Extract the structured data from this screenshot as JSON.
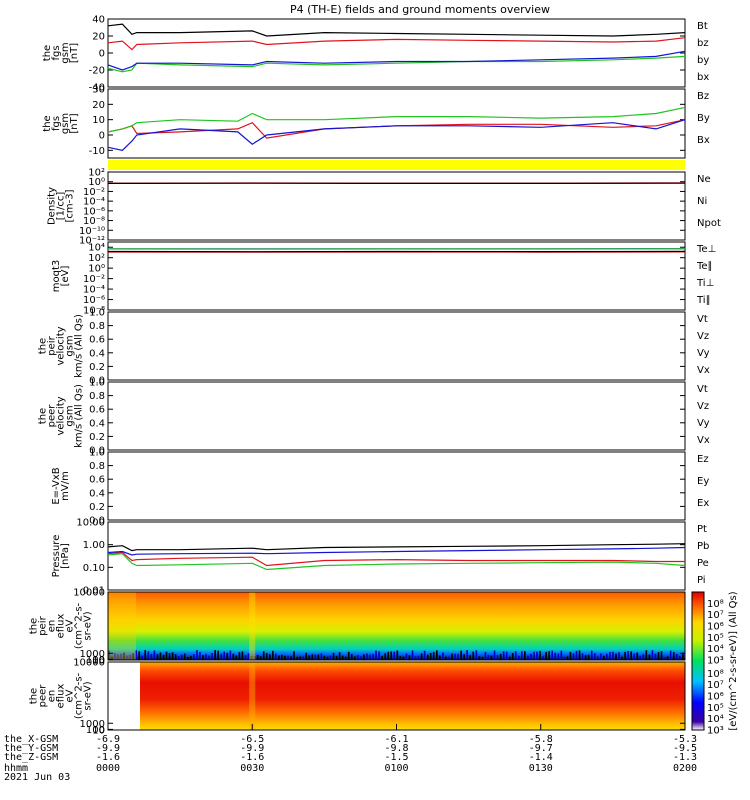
{
  "title": "P4 (TH-E) fields and ground moments overview",
  "colors": {
    "black": "#000000",
    "red": "#e0141e",
    "green": "#21c421",
    "blue": "#1414d2",
    "yellow": "#ffff00"
  },
  "chart_data": [
    {
      "id": "fgs-gsm",
      "type": "line",
      "ylabel_lines": [
        "the",
        "fgs",
        "gsm",
        "[nT]"
      ],
      "ylim": [
        -40,
        40
      ],
      "yticks": [
        "40",
        "20",
        "0",
        "-20",
        "-40"
      ],
      "ytick_values": [
        40,
        20,
        0,
        -20,
        -40
      ],
      "x_hours": [
        0,
        0.05,
        0.083,
        0.1,
        0.25,
        0.5,
        0.55,
        0.75,
        1.0,
        1.25,
        1.5,
        1.75,
        1.9,
        2.0
      ],
      "series": [
        {
          "name": "Bt",
          "color": "black",
          "values": [
            32,
            34,
            22,
            24,
            24,
            26,
            20,
            24,
            23,
            22,
            21,
            20,
            22,
            24
          ]
        },
        {
          "name": "bz",
          "color": "red",
          "values": [
            12,
            14,
            4,
            10,
            12,
            14,
            10,
            14,
            16,
            15,
            14,
            13,
            14,
            18
          ]
        },
        {
          "name": "by",
          "color": "green",
          "values": [
            -18,
            -22,
            -20,
            -12,
            -14,
            -16,
            -12,
            -14,
            -12,
            -10,
            -10,
            -8,
            -6,
            -4
          ]
        },
        {
          "name": "bx",
          "color": "blue",
          "values": [
            -14,
            -20,
            -16,
            -12,
            -12,
            -14,
            -10,
            -12,
            -10,
            -10,
            -8,
            -6,
            -4,
            2
          ]
        }
      ]
    },
    {
      "id": "fgs-gsm-dsl",
      "type": "line",
      "ylabel_lines": [
        "the",
        "fgs",
        "gsm",
        "[nT]"
      ],
      "ylim": [
        -15,
        30
      ],
      "yticks": [
        "30",
        "20",
        "10",
        "0",
        "-10"
      ],
      "ytick_values": [
        30,
        20,
        10,
        0,
        -10
      ],
      "x_hours": [
        0,
        0.05,
        0.083,
        0.1,
        0.25,
        0.45,
        0.5,
        0.55,
        0.75,
        1.0,
        1.25,
        1.5,
        1.75,
        1.9,
        2.0
      ],
      "series": [
        {
          "name": "Bz",
          "color": "red",
          "values": [
            2,
            4,
            6,
            1,
            2,
            4,
            8,
            -2,
            4,
            6,
            7,
            7,
            5,
            6,
            10
          ]
        },
        {
          "name": "By",
          "color": "green",
          "values": [
            2,
            4,
            6,
            8,
            10,
            9,
            14,
            10,
            10,
            12,
            12,
            11,
            12,
            14,
            18
          ]
        },
        {
          "name": "Bx",
          "color": "blue",
          "values": [
            -8,
            -10,
            -4,
            0,
            4,
            2,
            -6,
            0,
            4,
            6,
            6,
            5,
            8,
            4,
            10
          ]
        }
      ]
    },
    {
      "id": "flag-bar",
      "type": "bar",
      "color": "yellow"
    },
    {
      "id": "density",
      "type": "line",
      "log": true,
      "ylabel_lines": [
        "Density",
        "[1/cc]",
        "[cm-3]"
      ],
      "ylim_exp": [
        -12,
        2
      ],
      "yticks": [
        "10²",
        "10⁰",
        "10⁻²",
        "10⁻⁴",
        "10⁻⁶",
        "10⁻⁸",
        "10⁻¹⁰",
        "10⁻¹²"
      ],
      "ytick_exponents": [
        2,
        0,
        -2,
        -4,
        -6,
        -8,
        -10,
        -12
      ],
      "x_hours": [
        0,
        0.5,
        1.0,
        1.5,
        2.0
      ],
      "series": [
        {
          "name": "Ne",
          "color": "red",
          "values": [
            0.5,
            0.55,
            0.5,
            0.5,
            0.6
          ]
        },
        {
          "name": "Ni",
          "color": "black",
          "values": [
            0.45,
            0.5,
            0.45,
            0.45,
            0.5
          ]
        },
        {
          "name": "Npot",
          "color": "blue",
          "values": [
            null,
            null,
            null,
            null,
            null
          ]
        }
      ]
    },
    {
      "id": "moment-temperature",
      "type": "line",
      "log": true,
      "ylabel_lines": [
        "moqt3",
        "[eV]"
      ],
      "ylim_exp": [
        -8,
        5
      ],
      "yticks": [
        "10⁴",
        "10²",
        "10⁰",
        "10⁻²",
        "10⁻⁴",
        "10⁻⁶",
        "10⁻⁸"
      ],
      "ytick_exponents": [
        4,
        2,
        0,
        -2,
        -4,
        -6,
        -8
      ],
      "x_hours": [
        0,
        0.5,
        1.0,
        1.5,
        2.0
      ],
      "series": [
        {
          "name": "Te⊥",
          "color": "red",
          "values": [
            1200,
            1100,
            1200,
            1150,
            1300
          ]
        },
        {
          "name": "Te∥",
          "color": "black",
          "values": [
            1500,
            1400,
            1500,
            1450,
            1600
          ]
        },
        {
          "name": "Ti⊥",
          "color": "blue",
          "values": [
            5000,
            4800,
            5000,
            4900,
            5200
          ]
        },
        {
          "name": "Ti∥",
          "color": "green",
          "values": [
            4500,
            4400,
            4600,
            4500,
            4700
          ]
        }
      ]
    },
    {
      "id": "peir-velocity",
      "type": "line",
      "ylabel_lines": [
        "the",
        "peir",
        "velocity",
        "gsm",
        "km/s (All Qs)"
      ],
      "ylim": [
        0,
        1
      ],
      "yticks": [
        "1.0",
        "0.8",
        "0.6",
        "0.4",
        "0.2",
        "0.0"
      ],
      "ytick_values": [
        1,
        0.8,
        0.6,
        0.4,
        0.2,
        0
      ],
      "series": [
        {
          "name": "Vt",
          "color": "black"
        },
        {
          "name": "Vz",
          "color": "red"
        },
        {
          "name": "Vy",
          "color": "green"
        },
        {
          "name": "Vx",
          "color": "blue"
        }
      ]
    },
    {
      "id": "peer-velocity",
      "type": "line",
      "ylabel_lines": [
        "the",
        "peer",
        "velocity",
        "gsm",
        "km/s (All Qs)"
      ],
      "ylim": [
        0,
        1
      ],
      "yticks": [
        "1.0",
        "0.8",
        "0.6",
        "0.4",
        "0.2",
        "0.0"
      ],
      "ytick_values": [
        1,
        0.8,
        0.6,
        0.4,
        0.2,
        0
      ],
      "series": [
        {
          "name": "Vt",
          "color": "black"
        },
        {
          "name": "Vz",
          "color": "red"
        },
        {
          "name": "Vy",
          "color": "green"
        },
        {
          "name": "Vx",
          "color": "blue"
        }
      ]
    },
    {
      "id": "e-field",
      "type": "line",
      "ylabel_lines": [
        "E=-VxB",
        "mV/m"
      ],
      "ylim": [
        0,
        1
      ],
      "yticks": [
        "1.0",
        "0.8",
        "0.6",
        "0.4",
        "0.2",
        "0.0"
      ],
      "ytick_values": [
        1,
        0.8,
        0.6,
        0.4,
        0.2,
        0
      ],
      "series": [
        {
          "name": "Ez",
          "color": "red"
        },
        {
          "name": "Ey",
          "color": "green"
        },
        {
          "name": "Ex",
          "color": "blue"
        }
      ]
    },
    {
      "id": "pressure",
      "type": "line",
      "log": true,
      "ylabel_lines": [
        "Pressure",
        "[nPa]"
      ],
      "ylim": [
        0.01,
        10
      ],
      "yticks": [
        "10.00",
        "1.00",
        "0.10",
        "0.01"
      ],
      "ytick_values": [
        10,
        1,
        0.1,
        0.01
      ],
      "x_hours": [
        0,
        0.05,
        0.083,
        0.1,
        0.25,
        0.5,
        0.55,
        0.75,
        1.0,
        1.25,
        1.5,
        1.75,
        1.9,
        2.0
      ],
      "series": [
        {
          "name": "Pt",
          "color": "black",
          "values": [
            0.8,
            0.9,
            0.55,
            0.6,
            0.6,
            0.7,
            0.6,
            0.75,
            0.8,
            0.85,
            0.9,
            1.0,
            1.05,
            1.1
          ]
        },
        {
          "name": "Pb",
          "color": "red",
          "values": [
            0.4,
            0.45,
            0.2,
            0.22,
            0.25,
            0.28,
            0.12,
            0.2,
            0.22,
            0.2,
            0.2,
            0.2,
            0.18,
            0.18
          ]
        },
        {
          "name": "Pe",
          "color": "green",
          "values": [
            0.35,
            0.4,
            0.15,
            0.12,
            0.13,
            0.15,
            0.08,
            0.12,
            0.14,
            0.15,
            0.16,
            0.17,
            0.15,
            0.12
          ]
        },
        {
          "name": "Pi",
          "color": "blue",
          "values": [
            0.45,
            0.5,
            0.35,
            0.38,
            0.4,
            0.42,
            0.4,
            0.45,
            0.5,
            0.55,
            0.6,
            0.65,
            0.7,
            0.75
          ]
        }
      ]
    },
    {
      "id": "peir-eflux",
      "type": "heatmap",
      "ylabel_lines": [
        "the",
        "peir",
        "en",
        "eflux",
        "eV",
        "(cm^2-s-",
        "sr-eV)"
      ],
      "ylim": [
        10,
        10000
      ],
      "yticks": [
        "10000",
        "1000",
        "100",
        "10"
      ],
      "ytick_values": [
        10000,
        1000,
        100,
        10
      ],
      "colorbar_ticks": [
        "10⁸",
        "10⁷",
        "10⁶",
        "10⁵",
        "10⁴",
        "10³"
      ],
      "colorbar_range_exp": [
        3,
        9
      ]
    },
    {
      "id": "peer-eflux",
      "type": "heatmap",
      "ylabel_lines": [
        "the",
        "peer",
        "en",
        "eflux",
        "eV",
        "(cm^2-s-",
        "sr-eV)"
      ],
      "ylim": [
        10,
        10000
      ],
      "yticks": [
        "10000",
        "1000",
        "100",
        "10"
      ],
      "ytick_values": [
        10000,
        1000,
        100,
        10
      ],
      "colorbar_ticks": [
        "10⁸",
        "10⁷",
        "10⁶",
        "10⁵",
        "10⁴",
        "10³"
      ],
      "colorbar_range_exp": [
        3,
        9
      ]
    }
  ],
  "colorbar_label": "[eV/(cm^2-s-sr-eV)] (All Qs)",
  "xaxis": {
    "row_labels": [
      "the_X-GSM",
      "the_Y-GSM",
      "the_Z-GSM",
      "hhmm",
      "2021 Jun 03"
    ],
    "columns": [
      {
        "hours": 0.0,
        "x": "-6.9",
        "y": "-9.9",
        "z": "-1.6",
        "hhmm": "0000"
      },
      {
        "hours": 0.5,
        "x": "-6.5",
        "y": "-9.9",
        "z": "-1.6",
        "hhmm": "0030"
      },
      {
        "hours": 1.0,
        "x": "-6.1",
        "y": "-9.8",
        "z": "-1.5",
        "hhmm": "0100"
      },
      {
        "hours": 1.5,
        "x": "-5.8",
        "y": "-9.7",
        "z": "-1.4",
        "hhmm": "0130"
      },
      {
        "hours": 2.0,
        "x": "-5.3",
        "y": "-9.5",
        "z": "-1.3",
        "hhmm": "0200"
      }
    ]
  }
}
